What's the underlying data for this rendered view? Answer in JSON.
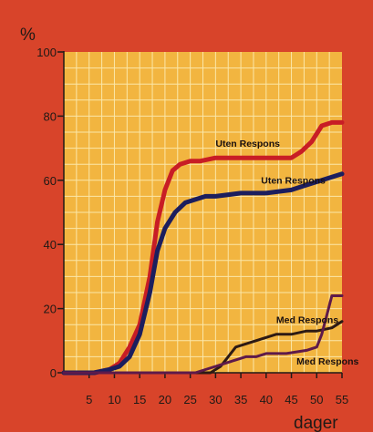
{
  "chart_data": {
    "type": "line",
    "y_unit_label": "%",
    "xlabel": "dager",
    "xlim": [
      0,
      55
    ],
    "ylim": [
      0,
      100
    ],
    "x_ticks": [
      5,
      10,
      15,
      20,
      25,
      30,
      35,
      40,
      45,
      50,
      55
    ],
    "y_ticks": [
      0,
      20,
      40,
      60,
      80,
      100
    ],
    "grid": true,
    "colors": {
      "background": "#d8442a",
      "plot_area": "#f2b540",
      "grid": "#fbe7a8",
      "red_series": "#c81d25",
      "navy_series": "#1c1e5e",
      "dark_series": "#2d1a14",
      "purple_series": "#5e1a4a"
    },
    "series": [
      {
        "color": "red",
        "points": [
          [
            0,
            0
          ],
          [
            6,
            0
          ],
          [
            9,
            1
          ],
          [
            11,
            3
          ],
          [
            13,
            8
          ],
          [
            15,
            15
          ],
          [
            17,
            30
          ],
          [
            18.5,
            47
          ],
          [
            20,
            57
          ],
          [
            21.5,
            63
          ],
          [
            23,
            65
          ],
          [
            25,
            66
          ],
          [
            27,
            66
          ],
          [
            30,
            67
          ],
          [
            35,
            67
          ],
          [
            40,
            67
          ],
          [
            45,
            67
          ],
          [
            47,
            69
          ],
          [
            49,
            72
          ],
          [
            51,
            77
          ],
          [
            53,
            78
          ],
          [
            55,
            78
          ]
        ]
      },
      {
        "color": "navy",
        "points": [
          [
            0,
            0
          ],
          [
            6,
            0
          ],
          [
            9,
            1
          ],
          [
            11,
            2
          ],
          [
            13,
            5
          ],
          [
            15,
            12
          ],
          [
            17,
            25
          ],
          [
            18.5,
            38
          ],
          [
            20,
            45
          ],
          [
            22,
            50
          ],
          [
            24,
            53
          ],
          [
            26,
            54
          ],
          [
            28,
            55
          ],
          [
            30,
            55
          ],
          [
            35,
            56
          ],
          [
            40,
            56
          ],
          [
            45,
            57
          ],
          [
            47,
            58
          ],
          [
            49,
            59
          ],
          [
            51,
            60
          ],
          [
            53,
            61
          ],
          [
            55,
            62
          ]
        ]
      },
      {
        "color": "dark",
        "points": [
          [
            0,
            0
          ],
          [
            26,
            0
          ],
          [
            29,
            0
          ],
          [
            31,
            2
          ],
          [
            32,
            4
          ],
          [
            34,
            8
          ],
          [
            36,
            9
          ],
          [
            38,
            10
          ],
          [
            40,
            11
          ],
          [
            42,
            12
          ],
          [
            45,
            12
          ],
          [
            48,
            13
          ],
          [
            50,
            13
          ],
          [
            53,
            14
          ],
          [
            55,
            16
          ]
        ]
      },
      {
        "color": "purple",
        "points": [
          [
            0,
            0
          ],
          [
            26,
            0
          ],
          [
            28,
            1
          ],
          [
            30,
            2
          ],
          [
            32,
            3
          ],
          [
            34,
            4
          ],
          [
            36,
            5
          ],
          [
            38,
            5
          ],
          [
            40,
            6
          ],
          [
            44,
            6
          ],
          [
            48,
            7
          ],
          [
            50,
            8
          ],
          [
            51,
            12
          ],
          [
            52,
            18
          ],
          [
            53,
            24
          ],
          [
            55,
            24
          ]
        ]
      }
    ],
    "annotations": [
      {
        "text": "Uten Respons",
        "x": 30,
        "y": 70.5
      },
      {
        "text": "Uten Respons",
        "x": 39,
        "y": 59
      },
      {
        "text": "Med Respons",
        "x": 42,
        "y": 15.5
      },
      {
        "text": "Med Respons",
        "x": 46,
        "y": 2.5
      }
    ]
  }
}
